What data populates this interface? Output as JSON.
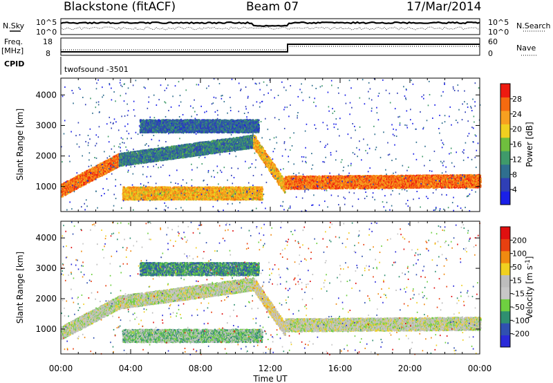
{
  "header": {
    "title": "Blackstone (fitACF)",
    "beam": "Beam 07",
    "date": "17/Mar/2014"
  },
  "top_panels": {
    "nsky_label": "N.Sky",
    "nsearch_label": "N.Search",
    "log_ticks_left": [
      "10^5",
      "10^0"
    ],
    "log_ticks_right": [
      "10^5",
      "10^0"
    ],
    "freq_label_line1": "Freq.",
    "freq_label_line2": "[MHz]",
    "freq_ticks": [
      "18",
      "8"
    ],
    "nave_label": "Nave",
    "nave_ticks": [
      "60",
      "0"
    ],
    "cpid_label": "CPID",
    "cpid_text": "twofsound   -3501"
  },
  "colors": {
    "power_scale": [
      "#1a20e8",
      "#2f3fb6",
      "#2f6f8f",
      "#3f9a6a",
      "#6fbe3e",
      "#f0d020",
      "#f7a020",
      "#f56a10",
      "#ee1a10"
    ],
    "velocity_scale": [
      "#2a2ad8",
      "#3050b0",
      "#2f8f70",
      "#6ed040",
      "#c7c7c7",
      "#bdbdbd",
      "#f0d020",
      "#f08a10",
      "#e84010",
      "#e01010"
    ],
    "grid": "#000000"
  },
  "chart_data": [
    {
      "name": "power",
      "type": "heatmap",
      "title": "",
      "xlabel": "Time UT",
      "ylabel": "Slant Range [km]",
      "x_ticks": [
        "00:00",
        "04:00",
        "08:00",
        "12:00",
        "16:00",
        "20:00",
        "00:00"
      ],
      "xlim_hours": [
        0,
        24
      ],
      "y_ticks": [
        1000,
        2000,
        3000,
        4000
      ],
      "ylim": [
        180,
        4550
      ],
      "colorbar": {
        "label": "Power [dB]",
        "ticks": [
          4,
          8,
          12,
          16,
          20,
          24,
          28
        ],
        "range": [
          0,
          32
        ]
      },
      "echo_bands": [
        {
          "t": [
            0,
            3.3
          ],
          "r0": 900,
          "r1": 1900,
          "level": 26
        },
        {
          "t": [
            3.3,
            11.0
          ],
          "r0": 1900,
          "r1": 2500,
          "level": 10
        },
        {
          "t": [
            11.0,
            12.8
          ],
          "r0": 2500,
          "r1": 1000,
          "level": 22
        },
        {
          "t": [
            12.8,
            24
          ],
          "r0": 1150,
          "r1": 1200,
          "level": 26
        },
        {
          "t": [
            3.5,
            11.5
          ],
          "r0": 800,
          "r1": 800,
          "level": 22
        },
        {
          "t": [
            4.5,
            11.3
          ],
          "r0": 3000,
          "r1": 3000,
          "level": 8
        }
      ]
    },
    {
      "name": "velocity",
      "type": "heatmap",
      "title": "",
      "xlabel": "Time UT",
      "ylabel": "Slant Range [km]",
      "x_ticks": [
        "00:00",
        "04:00",
        "08:00",
        "12:00",
        "16:00",
        "20:00",
        "00:00"
      ],
      "xlim_hours": [
        0,
        24
      ],
      "y_ticks": [
        1000,
        2000,
        3000,
        4000
      ],
      "ylim": [
        180,
        4550
      ],
      "colorbar": {
        "label": "Velocity [m s^-1]",
        "ticks": [
          200,
          100,
          50,
          15,
          -15,
          -50,
          -100,
          -200
        ],
        "range": [
          -250,
          250
        ]
      },
      "echo_bands": [
        {
          "t": [
            0,
            3.3
          ],
          "r0": 900,
          "r1": 1900,
          "level": -10
        },
        {
          "t": [
            3.3,
            11.0
          ],
          "r0": 1900,
          "r1": 2500,
          "level": -5
        },
        {
          "t": [
            11.0,
            12.8
          ],
          "r0": 2500,
          "r1": 1000,
          "level": 30
        },
        {
          "t": [
            12.8,
            24
          ],
          "r0": 1150,
          "r1": 1200,
          "level": 0
        },
        {
          "t": [
            3.5,
            11.5
          ],
          "r0": 800,
          "r1": 800,
          "level": -60
        },
        {
          "t": [
            4.5,
            11.3
          ],
          "r0": 3000,
          "r1": 3000,
          "level": -120
        }
      ]
    }
  ]
}
